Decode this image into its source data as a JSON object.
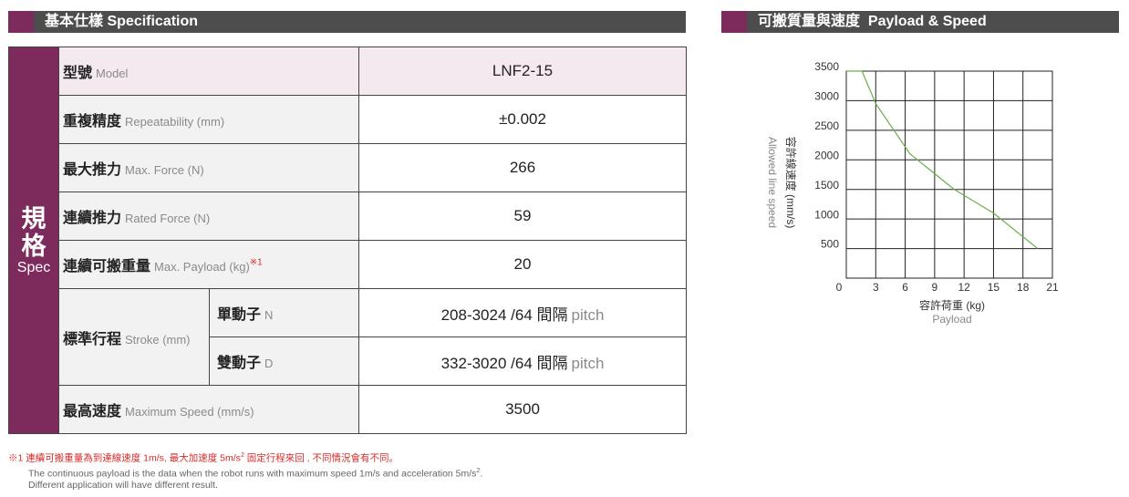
{
  "left_header": {
    "title_zh": "基本仕樣",
    "title_en": "Specification"
  },
  "right_header": {
    "title_zh": "可搬質量與速度",
    "title_en": "Payload & Speed"
  },
  "spec_table": {
    "side_label_zh": "規格",
    "side_label_en": "Spec",
    "rows": [
      {
        "label_zh": "型號",
        "label_en": "Model",
        "value": "LNF2-15"
      },
      {
        "label_zh": "重複精度",
        "label_en": "Repeatability (mm)",
        "value": "±0.002"
      },
      {
        "label_zh": "最大推力",
        "label_en": "Max. Force (N)",
        "value": 266
      },
      {
        "label_zh": "連續推力",
        "label_en": "Rated Force (N)",
        "value": 59
      },
      {
        "label_zh": "連續可搬重量",
        "label_en": "Max. Payload (kg)",
        "note_mark": "※1",
        "value": 20
      },
      {
        "label_zh": "標準行程",
        "label_en": "Stroke (mm)",
        "sub": [
          {
            "label_zh": "單動子",
            "label_en": "N",
            "value": "208-3024 /64 間隔",
            "value_en": "pitch"
          },
          {
            "label_zh": "雙動子",
            "label_en": "D",
            "value": "332-3020 /64 間隔",
            "value_en": "pitch"
          }
        ]
      },
      {
        "label_zh": "最高速度",
        "label_en": "Maximum Speed (mm/s)",
        "value": 3500
      }
    ]
  },
  "footnote": {
    "zh": [
      "※1 連續可搬重量為到達線速度 1m/s, 最大加速度 5m/s",
      "2",
      " 固定行程來回 , 不同情況會有不同。"
    ],
    "en1": [
      "The continuous payload is the data when the robot runs with maximum speed 1m/s and acceleration 5m/s",
      "2",
      "."
    ],
    "en2": "Different application will have different result."
  },
  "chart_data": {
    "type": "line",
    "x_label": "容許荷重 (kg)",
    "x_label_en": "Payload",
    "y_label": "容許線速度 (mm/s)",
    "y_label_en": "Allowed line speed",
    "x": [
      0,
      1.6,
      3,
      6.5,
      11,
      15,
      19.5
    ],
    "values": [
      3500,
      3500,
      2950,
      2100,
      1500,
      1100,
      500
    ],
    "color": "#6aaf4a",
    "xlim": [
      0,
      21
    ],
    "xticks": [
      0,
      3,
      6,
      9,
      12,
      15,
      18,
      21
    ],
    "ylim": [
      0,
      3500
    ],
    "yticks": [
      500,
      1000,
      1500,
      2000,
      2500,
      3000,
      3500
    ],
    "grid": true
  }
}
